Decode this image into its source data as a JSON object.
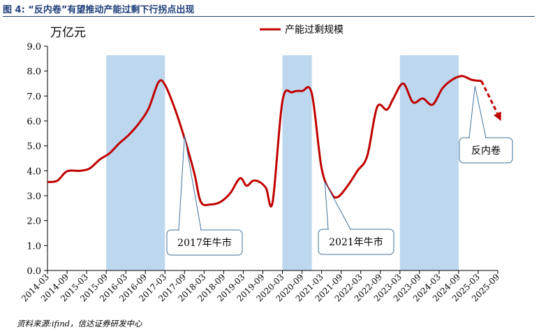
{
  "figure_title": "图 4: “反内卷”有望推动产能过剩下行拐点出现",
  "source": "资料来源:ifind，信达证券研发中心",
  "chart_data": {
    "type": "line",
    "unit_label": "万亿元",
    "legend": [
      "产能过剩规模"
    ],
    "legend_position": "top-right",
    "grid": false,
    "ylim": [
      0,
      9
    ],
    "y_ticks": [
      "0.0",
      "1.0",
      "2.0",
      "3.0",
      "4.0",
      "5.0",
      "6.0",
      "7.0",
      "8.0",
      "9.0"
    ],
    "x_ticks": [
      "2014-03",
      "2014-09",
      "2015-03",
      "2015-09",
      "2016-03",
      "2016-09",
      "2017-03",
      "2017-09",
      "2018-03",
      "2018-09",
      "2019-03",
      "2019-09",
      "2020-03",
      "2020-09",
      "2021-03",
      "2021-09",
      "2022-03",
      "2022-09",
      "2023-03",
      "2023-09",
      "2024-03",
      "2024-09",
      "2025-03",
      "2025-09"
    ],
    "shaded_periods": [
      {
        "start": "2015-09",
        "end": "2017-03"
      },
      {
        "start": "2020-03",
        "end": "2020-12"
      },
      {
        "start": "2023-03",
        "end": "2024-09"
      }
    ],
    "series": [
      {
        "name": "产能过剩规模",
        "color": "#c00000",
        "points": [
          [
            "2014-03",
            3.55
          ],
          [
            "2014-06",
            3.6
          ],
          [
            "2014-09",
            3.98
          ],
          [
            "2015-01",
            4.0
          ],
          [
            "2015-04",
            4.1
          ],
          [
            "2015-07",
            4.45
          ],
          [
            "2015-10",
            4.7
          ],
          [
            "2016-01",
            5.1
          ],
          [
            "2016-04",
            5.45
          ],
          [
            "2016-07",
            5.9
          ],
          [
            "2016-10",
            6.5
          ],
          [
            "2017-01",
            7.55
          ],
          [
            "2017-03",
            7.45
          ],
          [
            "2017-06",
            6.5
          ],
          [
            "2017-09",
            5.3
          ],
          [
            "2017-12",
            3.9
          ],
          [
            "2018-02",
            2.75
          ],
          [
            "2018-05",
            2.65
          ],
          [
            "2018-08",
            2.75
          ],
          [
            "2018-11",
            3.1
          ],
          [
            "2019-02",
            3.7
          ],
          [
            "2019-04",
            3.4
          ],
          [
            "2019-06",
            3.6
          ],
          [
            "2019-08",
            3.55
          ],
          [
            "2019-10",
            3.3
          ],
          [
            "2019-12",
            2.75
          ],
          [
            "2020-03",
            6.8
          ],
          [
            "2020-06",
            7.15
          ],
          [
            "2020-09",
            7.2
          ],
          [
            "2020-12",
            7.1
          ],
          [
            "2021-03",
            4.1
          ],
          [
            "2021-06",
            3.1
          ],
          [
            "2021-08",
            2.95
          ],
          [
            "2021-11",
            3.4
          ],
          [
            "2022-02",
            4.0
          ],
          [
            "2022-05",
            4.6
          ],
          [
            "2022-08",
            6.55
          ],
          [
            "2022-11",
            6.45
          ],
          [
            "2023-01",
            6.9
          ],
          [
            "2023-04",
            7.5
          ],
          [
            "2023-07",
            6.75
          ],
          [
            "2023-10",
            6.9
          ],
          [
            "2024-01",
            6.65
          ],
          [
            "2024-04",
            7.3
          ],
          [
            "2024-07",
            7.65
          ],
          [
            "2024-10",
            7.8
          ],
          [
            "2025-01",
            7.65
          ],
          [
            "2025-04",
            7.6
          ]
        ],
        "forecast_points": [
          [
            "2025-04",
            7.6
          ],
          [
            "2025-10",
            6.0
          ]
        ]
      }
    ],
    "annotations": [
      {
        "text": "2017年牛市",
        "target": [
          "2017-09",
          5.4
        ]
      },
      {
        "text": "2021年牛市",
        "target": [
          "2021-04",
          3.55
        ]
      },
      {
        "text": "反内卷",
        "target": [
          "2025-02",
          7.4
        ]
      }
    ]
  }
}
